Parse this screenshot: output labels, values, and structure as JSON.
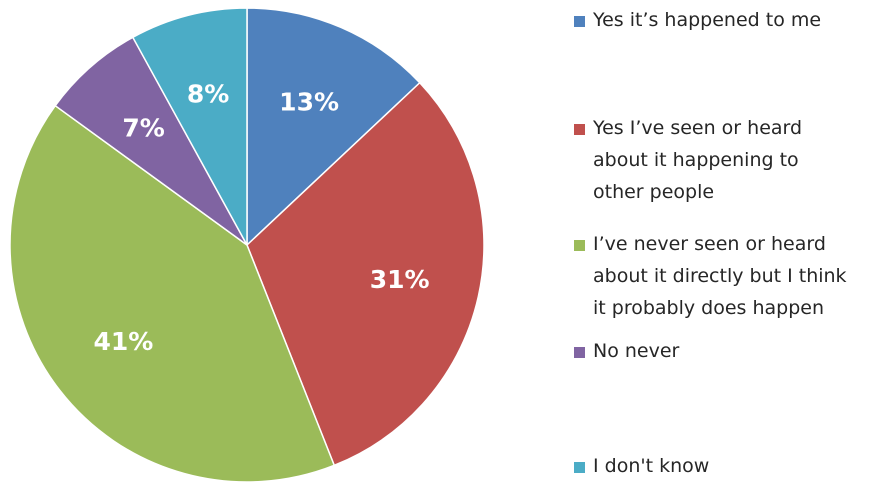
{
  "chart_data": {
    "type": "pie",
    "start": "12 o'clock, clockwise",
    "slices": [
      {
        "label": "Yes it’s happened to me",
        "value": 13,
        "display": "13%",
        "color": "#4f81bd"
      },
      {
        "label": "Yes I’ve seen or heard about it happening to other people",
        "value": 31,
        "display": "31%",
        "color": "#c0504d"
      },
      {
        "label": "I’ve never seen or heard about it directly but I think it probably does happen",
        "value": 41,
        "display": "41%",
        "color": "#9bbb59"
      },
      {
        "label": "No never",
        "value": 7,
        "display": "7%",
        "color": "#8064a2"
      },
      {
        "label": "I don't know",
        "value": 8,
        "display": "8%",
        "color": "#4bacc6"
      }
    ],
    "legend": {
      "placement": "right",
      "lines": [
        [
          "Yes it’s happened to me"
        ],
        [
          "Yes I’ve seen or heard",
          "about it happening to",
          "other people"
        ],
        [
          "I’ve never seen or heard",
          "about it directly but I think",
          "it probably does happen"
        ],
        [
          "No never"
        ],
        [
          "I don't know"
        ]
      ]
    }
  }
}
